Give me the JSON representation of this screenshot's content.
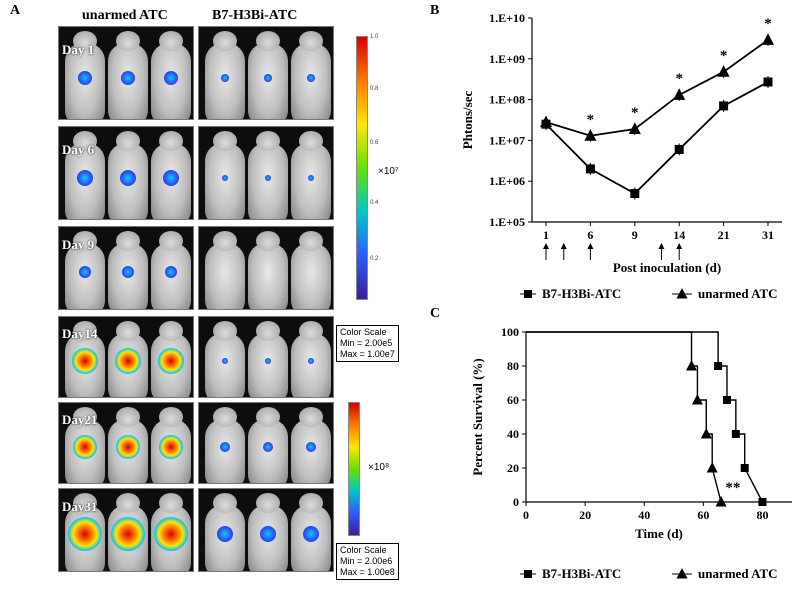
{
  "panel_a": {
    "letter": "A",
    "col_unarmed": "unarmed ATC",
    "col_b7": "B7-H3Bi-ATC",
    "days": [
      "Day 1",
      "Day 6",
      "Day 9",
      "Day14",
      "Day21",
      "Day31"
    ],
    "colorbar1": {
      "multiplier": "×10⁷",
      "ticks": [
        "1.0",
        "0.8",
        "0.6",
        "0.4",
        "0.2"
      ]
    },
    "colorbar2": {
      "multiplier": "×10⁸"
    },
    "scale1": {
      "title": "Color Scale",
      "min": "Min = 2.00e5",
      "max": "Max = 1.00e7"
    },
    "scale2": {
      "title": "Color Scale",
      "min": "Min = 2.00e6",
      "max": "Max = 1.00e8"
    }
  },
  "panel_b": {
    "letter": "B"
  },
  "panel_c": {
    "letter": "C"
  },
  "chart_data": [
    {
      "type": "line",
      "ylabel": "Phtons/sec",
      "xlabel": "Post inoculation (d)",
      "yscale": "log",
      "ylim": [
        100000,
        10000000000
      ],
      "yticks": [
        "1.E+05",
        "1.E+06",
        "1.E+07",
        "1.E+08",
        "1.E+09",
        "1.E+10"
      ],
      "categories": [
        "1",
        "6",
        "9",
        "14",
        "21",
        "31"
      ],
      "series": [
        {
          "name": "B7-H3Bi-ATC",
          "marker": "square",
          "values": [
            25000000,
            2000000,
            500000,
            6000000,
            70000000,
            270000000
          ]
        },
        {
          "name": "unarmed ATC",
          "marker": "triangle",
          "values": [
            28000000,
            13000000,
            19000000,
            130000000,
            480000000,
            2900000000
          ]
        }
      ],
      "significance": [
        "",
        "*",
        "*",
        "*",
        "*",
        "*"
      ],
      "treatment_arrow_days": [
        1,
        3,
        6,
        12,
        14
      ],
      "legend": [
        "B7-H3Bi-ATC",
        "unarmed ATC"
      ],
      "legend_position": "bottom"
    },
    {
      "type": "line",
      "step": true,
      "ylabel": "Percent Survival (%)",
      "xlabel": "Time (d)",
      "xlim": [
        0,
        90
      ],
      "ylim": [
        0,
        100
      ],
      "xticks": [
        0,
        20,
        40,
        60,
        80
      ],
      "yticks": [
        0,
        20,
        40,
        60,
        80,
        100
      ],
      "series": [
        {
          "name": "B7-H3Bi-ATC",
          "marker": "square",
          "x": [
            0,
            65,
            65,
            68,
            68,
            71,
            71,
            74,
            74,
            80
          ],
          "y": [
            100,
            100,
            80,
            80,
            60,
            60,
            40,
            40,
            20,
            0
          ],
          "markers_x": [
            65,
            68,
            71,
            74,
            80
          ],
          "markers_y": [
            80,
            60,
            40,
            20,
            0
          ]
        },
        {
          "name": "unarmed ATC",
          "marker": "triangle",
          "x": [
            0,
            56,
            56,
            58,
            58,
            61,
            61,
            63,
            63,
            66
          ],
          "y": [
            100,
            100,
            80,
            80,
            60,
            60,
            40,
            40,
            20,
            0
          ],
          "markers_x": [
            56,
            58,
            61,
            63,
            66
          ],
          "markers_y": [
            80,
            60,
            40,
            20,
            0
          ]
        }
      ],
      "annotation": "**",
      "legend": [
        "B7-H3Bi-ATC",
        "unarmed ATC"
      ],
      "legend_position": "bottom"
    }
  ]
}
